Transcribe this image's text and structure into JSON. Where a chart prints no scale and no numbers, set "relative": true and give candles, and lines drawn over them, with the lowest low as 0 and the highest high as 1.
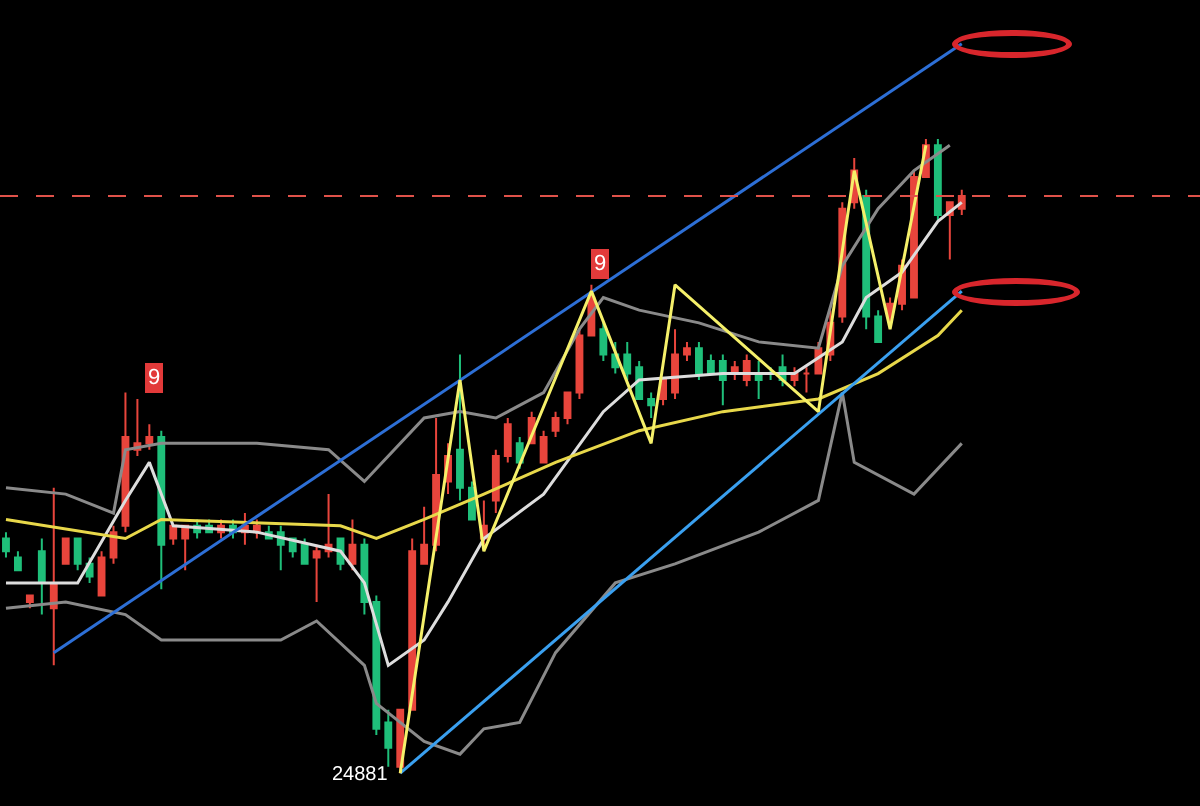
{
  "chart_data": {
    "type": "candlestick",
    "relative": true,
    "categories": [
      null,
      null,
      null,
      null,
      null,
      null,
      null,
      null,
      null,
      null,
      null,
      null,
      null,
      null,
      null,
      null,
      null,
      null,
      null,
      null,
      null,
      null,
      null,
      null,
      null,
      null,
      null,
      null,
      null,
      null,
      null,
      null,
      null,
      null,
      null,
      null,
      null,
      null,
      null,
      null,
      null,
      null,
      null,
      null,
      null,
      null,
      null,
      null,
      null,
      null,
      null,
      null,
      null,
      null,
      null,
      null,
      null,
      null,
      null,
      null,
      null,
      null,
      null,
      null,
      null,
      null,
      null,
      null,
      null,
      null,
      null,
      null,
      null,
      null,
      null,
      null,
      null,
      null,
      null,
      null,
      null
    ],
    "colors": [
      "#1fbf7a",
      "#1fbf7a",
      "#e8453c",
      "#1fbf7a",
      "#e8453c",
      "#e8453c",
      "#1fbf7a",
      "#1fbf7a",
      "#e8453c",
      "#e8453c",
      "#e8453c",
      "#e8453c",
      "#e8453c",
      "#1fbf7a",
      "#e8453c",
      "#e8453c",
      "#1fbf7a",
      "#1fbf7a",
      "#e8453c",
      "#1fbf7a",
      "#e8453c",
      "#e8453c",
      "#1fbf7a",
      "#1fbf7a",
      "#1fbf7a",
      "#1fbf7a",
      "#e8453c",
      "#e8453c",
      "#1fbf7a",
      "#e8453c",
      "#1fbf7a",
      "#1fbf7a",
      "#1fbf7a",
      "#e8453c",
      "#e8453c",
      "#e8453c",
      "#e8453c",
      "#e8453c",
      "#1fbf7a",
      "#1fbf7a",
      "#e8453c",
      "#e8453c",
      "#e8453c",
      "#1fbf7a",
      "#e8453c",
      "#e8453c",
      "#e8453c",
      "#e8453c",
      "#e8453c",
      "#e8453c",
      "#1fbf7a",
      "#1fbf7a",
      "#1fbf7a",
      "#1fbf7a",
      "#1fbf7a",
      "#e8453c",
      "#e8453c",
      "#e8453c",
      "#1fbf7a",
      "#1fbf7a",
      "#1fbf7a",
      "#e8453c",
      "#e8453c",
      "#1fbf7a",
      "#1fbf7a",
      "#1fbf7a",
      "#e8453c",
      "#e8453c",
      "#e8453c",
      "#e8453c",
      "#e8453c",
      "#e8453c",
      "#1fbf7a",
      "#1fbf7a",
      "#e8453c",
      "#e8453c",
      "#e8453c",
      "#e8453c",
      "#1fbf7a",
      "#e8453c",
      "#e8453c"
    ],
    "ohlc": [
      [
        0.37,
        0.38,
        0.34,
        0.35
      ],
      [
        0.34,
        0.35,
        0.32,
        0.32
      ],
      [
        0.27,
        0.28,
        0.26,
        0.28
      ],
      [
        0.35,
        0.37,
        0.25,
        0.3
      ],
      [
        0.26,
        0.45,
        0.17,
        0.3
      ],
      [
        0.33,
        0.37,
        0.33,
        0.37
      ],
      [
        0.37,
        0.37,
        0.32,
        0.33
      ],
      [
        0.33,
        0.34,
        0.3,
        0.31
      ],
      [
        0.28,
        0.35,
        0.28,
        0.34
      ],
      [
        0.34,
        0.39,
        0.33,
        0.38
      ],
      [
        0.39,
        0.6,
        0.38,
        0.53
      ],
      [
        0.51,
        0.59,
        0.5,
        0.52
      ],
      [
        0.52,
        0.55,
        0.51,
        0.53
      ],
      [
        0.53,
        0.54,
        0.29,
        0.36
      ],
      [
        0.37,
        0.39,
        0.36,
        0.39
      ],
      [
        0.37,
        0.39,
        0.32,
        0.39
      ],
      [
        0.39,
        0.4,
        0.37,
        0.38
      ],
      [
        0.39,
        0.4,
        0.38,
        0.38
      ],
      [
        0.38,
        0.4,
        0.37,
        0.39
      ],
      [
        0.39,
        0.4,
        0.37,
        0.38
      ],
      [
        0.38,
        0.41,
        0.36,
        0.39
      ],
      [
        0.38,
        0.4,
        0.37,
        0.39
      ],
      [
        0.38,
        0.39,
        0.37,
        0.37
      ],
      [
        0.38,
        0.39,
        0.32,
        0.36
      ],
      [
        0.37,
        0.37,
        0.34,
        0.35
      ],
      [
        0.36,
        0.37,
        0.33,
        0.33
      ],
      [
        0.34,
        0.36,
        0.27,
        0.35
      ],
      [
        0.35,
        0.44,
        0.34,
        0.36
      ],
      [
        0.37,
        0.37,
        0.32,
        0.33
      ],
      [
        0.33,
        0.4,
        0.32,
        0.36
      ],
      [
        0.36,
        0.37,
        0.25,
        0.27
      ],
      [
        0.27,
        0.28,
        0.06,
        0.07
      ],
      [
        0.08,
        0.1,
        0.01,
        0.04
      ],
      [
        0.01,
        0.1,
        0,
        0.1
      ],
      [
        0.1,
        0.37,
        0.1,
        0.35
      ],
      [
        0.33,
        0.42,
        0.33,
        0.36
      ],
      [
        0.36,
        0.56,
        0.35,
        0.47
      ],
      [
        0.46,
        0.52,
        0.44,
        0.5
      ],
      [
        0.51,
        0.66,
        0.43,
        0.45
      ],
      [
        0.45,
        0.46,
        0.4,
        0.4
      ],
      [
        0.37,
        0.43,
        0.36,
        0.39
      ],
      [
        0.43,
        0.51,
        0.41,
        0.5
      ],
      [
        0.5,
        0.56,
        0.49,
        0.55
      ],
      [
        0.52,
        0.53,
        0.48,
        0.49
      ],
      [
        0.52,
        0.57,
        0.52,
        0.56
      ],
      [
        0.49,
        0.54,
        0.49,
        0.53
      ],
      [
        0.54,
        0.57,
        0.53,
        0.56
      ],
      [
        0.56,
        0.6,
        0.55,
        0.6
      ],
      [
        0.6,
        0.7,
        0.59,
        0.69
      ],
      [
        0.69,
        0.77,
        0.69,
        0.75
      ],
      [
        0.7,
        0.71,
        0.65,
        0.66
      ],
      [
        0.66,
        0.68,
        0.63,
        0.64
      ],
      [
        0.66,
        0.68,
        0.62,
        0.63
      ],
      [
        0.64,
        0.65,
        0.59,
        0.59
      ],
      [
        0.59,
        0.6,
        0.56,
        0.58
      ],
      [
        0.59,
        0.62,
        0.58,
        0.62
      ],
      [
        0.6,
        0.7,
        0.59,
        0.66
      ],
      [
        0.66,
        0.68,
        0.65,
        0.67
      ],
      [
        0.67,
        0.68,
        0.62,
        0.63
      ],
      [
        0.65,
        0.66,
        0.63,
        0.63
      ],
      [
        0.65,
        0.66,
        0.58,
        0.62
      ],
      [
        0.63,
        0.65,
        0.62,
        0.64
      ],
      [
        0.62,
        0.66,
        0.61,
        0.65
      ],
      [
        0.63,
        0.65,
        0.59,
        0.62
      ],
      [
        0.63,
        0.64,
        0.62,
        0.63
      ],
      [
        0.64,
        0.66,
        0.61,
        0.62
      ],
      [
        0.62,
        0.64,
        0.61,
        0.63
      ],
      [
        0.63,
        0.64,
        0.6,
        0.63
      ],
      [
        0.63,
        0.68,
        0.63,
        0.67
      ],
      [
        0.66,
        0.73,
        0.65,
        0.71
      ],
      [
        0.72,
        0.9,
        0.71,
        0.89
      ],
      [
        0.9,
        0.97,
        0.89,
        0.95
      ],
      [
        0.91,
        0.92,
        0.7,
        0.72
      ],
      [
        0.72,
        0.73,
        0.68,
        0.68
      ],
      [
        0.72,
        0.75,
        0.71,
        0.74
      ],
      [
        0.74,
        0.81,
        0.73,
        0.8
      ],
      [
        0.75,
        0.95,
        0.75,
        0.94
      ],
      [
        0.94,
        1,
        0.94,
        0.99
      ],
      [
        0.99,
        1,
        0.87,
        0.88
      ],
      [
        0.88,
        0.9,
        0.81,
        0.9
      ],
      [
        0.89,
        0.92,
        0.88,
        0.91
      ]
    ],
    "series": [
      {
        "type": "line",
        "color": "#8a8a8a",
        "values": [
          0.45,
          null,
          null,
          null,
          null,
          0.44,
          null,
          null,
          null,
          0.41,
          0.51,
          null,
          null,
          0.52,
          null,
          null,
          null,
          null,
          null,
          null,
          null,
          0.52,
          null,
          null,
          null,
          null,
          null,
          0.51,
          null,
          null,
          0.46,
          0.48,
          null,
          null,
          null,
          0.56,
          null,
          null,
          0.57,
          null,
          null,
          0.56,
          null,
          null,
          null,
          0.6,
          null,
          null,
          0.7,
          null,
          0.75,
          null,
          null,
          0.73,
          null,
          null,
          null,
          null,
          0.71,
          null,
          null,
          null,
          null,
          0.68,
          null,
          null,
          null,
          null,
          0.67,
          null,
          0.8,
          null,
          null,
          0.89,
          null,
          null,
          0.95,
          null,
          null,
          0.99,
          null
        ]
      },
      {
        "type": "line",
        "color": "#dddddd",
        "values": [
          0.3,
          null,
          null,
          null,
          null,
          null,
          0.3,
          null,
          null,
          null,
          0.43,
          null,
          0.49,
          null,
          0.39,
          null,
          null,
          null,
          null,
          null,
          null,
          0.38,
          null,
          null,
          null,
          null,
          null,
          null,
          0.35,
          null,
          0.3,
          null,
          0.17,
          null,
          null,
          0.21,
          null,
          0.27,
          null,
          null,
          0.37,
          null,
          null,
          null,
          null,
          0.44,
          null,
          null,
          null,
          null,
          0.57,
          null,
          null,
          0.62,
          null,
          null,
          null,
          null,
          null,
          null,
          0.63,
          null,
          null,
          null,
          null,
          null,
          0.63,
          null,
          null,
          null,
          0.68,
          null,
          0.75,
          null,
          null,
          0.79,
          null,
          null,
          0.87,
          null,
          0.9
        ]
      },
      {
        "type": "line",
        "color": "#8a8a8a",
        "values": [
          0.26,
          null,
          null,
          null,
          null,
          0.27,
          null,
          null,
          null,
          null,
          0.25,
          null,
          null,
          0.21,
          null,
          null,
          null,
          null,
          0.21,
          null,
          null,
          null,
          null,
          0.21,
          null,
          null,
          0.24,
          null,
          null,
          null,
          0.17,
          0.11,
          null,
          null,
          null,
          0.05,
          null,
          null,
          0.03,
          null,
          0.07,
          null,
          null,
          0.08,
          null,
          null,
          0.19,
          null,
          null,
          null,
          null,
          0.3,
          null,
          null,
          null,
          null,
          0.33,
          null,
          null,
          null,
          null,
          null,
          null,
          0.38,
          null,
          null,
          null,
          null,
          0.43,
          null,
          0.6,
          0.49,
          null,
          null,
          null,
          null,
          0.44,
          null,
          null,
          null,
          0.52
        ]
      },
      {
        "type": "line",
        "color": "#e8d84a",
        "values": [
          0.4,
          null,
          null,
          null,
          null,
          null,
          null,
          null,
          null,
          null,
          0.37,
          null,
          null,
          0.4,
          null,
          null,
          null,
          null,
          null,
          null,
          null,
          null,
          null,
          null,
          null,
          null,
          null,
          null,
          0.39,
          null,
          null,
          0.37,
          null,
          null,
          null,
          0.4,
          null,
          null,
          null,
          null,
          0.44,
          null,
          null,
          null,
          null,
          null,
          0.49,
          null,
          null,
          null,
          null,
          null,
          null,
          0.54,
          null,
          null,
          null,
          null,
          null,
          null,
          0.57,
          null,
          null,
          null,
          null,
          null,
          null,
          null,
          0.59,
          null,
          null,
          null,
          null,
          0.63,
          null,
          null,
          null,
          null,
          0.69,
          null,
          0.73
        ]
      },
      {
        "type": "line",
        "color": "#2d6fd6",
        "values": [
          null,
          null,
          null,
          null,
          0.19,
          null,
          null,
          null,
          null,
          null,
          null,
          null,
          null,
          null,
          null,
          null,
          null,
          null,
          null,
          null,
          null,
          null,
          null,
          null,
          null,
          null,
          null,
          null,
          null,
          null,
          null,
          null,
          null,
          null,
          null,
          null,
          null,
          null,
          null,
          null,
          null,
          null,
          null,
          null,
          null,
          null,
          null,
          null,
          null,
          null,
          null,
          null,
          null,
          null,
          null,
          null,
          null,
          null,
          null,
          null,
          null,
          null,
          null,
          null,
          null,
          null,
          null,
          null,
          null,
          null,
          null,
          null,
          null,
          null,
          null,
          null,
          null,
          null,
          null,
          null,
          1.15
        ]
      },
      {
        "type": "line",
        "color": "#3aa0f0",
        "values": [
          null,
          null,
          null,
          null,
          null,
          null,
          null,
          null,
          null,
          null,
          null,
          null,
          null,
          null,
          null,
          null,
          null,
          null,
          null,
          null,
          null,
          null,
          null,
          null,
          null,
          null,
          null,
          null,
          null,
          null,
          null,
          null,
          null,
          0,
          null,
          null,
          null,
          null,
          null,
          null,
          null,
          null,
          null,
          null,
          null,
          null,
          null,
          null,
          null,
          null,
          null,
          null,
          null,
          null,
          null,
          null,
          null,
          null,
          null,
          null,
          null,
          null,
          null,
          null,
          null,
          null,
          null,
          null,
          null,
          null,
          null,
          null,
          null,
          null,
          null,
          null,
          null,
          null,
          null,
          null,
          0.76
        ]
      },
      {
        "type": "line",
        "color": "#f5f06a",
        "values": [
          null,
          null,
          null,
          null,
          null,
          null,
          null,
          null,
          null,
          null,
          null,
          null,
          null,
          null,
          null,
          null,
          null,
          null,
          null,
          null,
          null,
          null,
          null,
          null,
          null,
          null,
          null,
          null,
          null,
          null,
          null,
          null,
          null,
          0,
          null,
          null,
          null,
          null,
          0.62,
          null,
          0.35,
          null,
          null,
          null,
          null,
          null,
          null,
          null,
          null,
          0.76,
          null,
          null,
          null,
          null,
          0.52,
          null,
          0.77,
          null,
          null,
          null,
          null,
          null,
          null,
          null,
          null,
          null,
          null,
          null,
          0.57,
          null,
          null,
          0.95,
          null,
          null,
          0.7,
          null,
          null,
          0.99,
          null,
          null,
          null
        ]
      }
    ],
    "ref_lines": [
      {
        "axis": "y",
        "value": 0.91,
        "color": "#e0524a",
        "line_style": "dashed"
      }
    ],
    "annotations": [
      "9",
      "9",
      "24881"
    ]
  }
}
